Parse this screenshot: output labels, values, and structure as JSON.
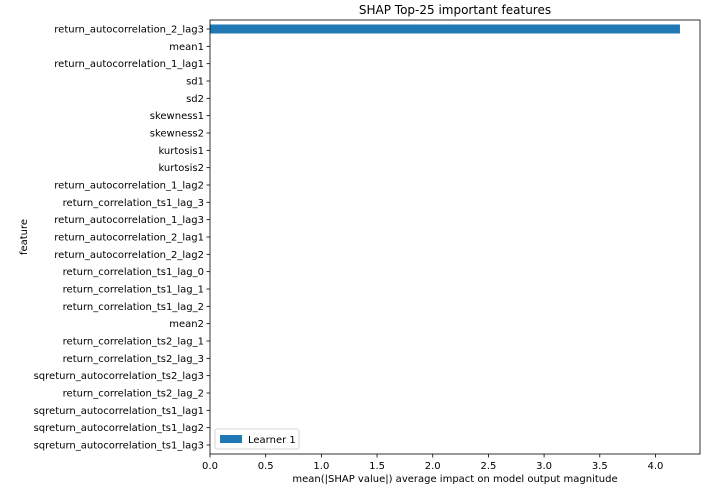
{
  "chart_data": {
    "type": "bar",
    "orientation": "horizontal",
    "title": "SHAP Top-25 important features",
    "xlabel": "mean(|SHAP value|) average impact on model output magnitude",
    "ylabel": "feature",
    "xlim": [
      0,
      4.4
    ],
    "xticks": [
      0.0,
      0.5,
      1.0,
      1.5,
      2.0,
      2.5,
      3.0,
      3.5,
      4.0
    ],
    "xtick_labels": [
      "0.0",
      "0.5",
      "1.0",
      "1.5",
      "2.0",
      "2.5",
      "3.0",
      "3.5",
      "4.0"
    ],
    "grid": false,
    "legend_position": "lower-left",
    "categories": [
      "return_autocorrelation_2_lag3",
      "mean1",
      "return_autocorrelation_1_lag1",
      "sd1",
      "sd2",
      "skewness1",
      "skewness2",
      "kurtosis1",
      "kurtosis2",
      "return_autocorrelation_1_lag2",
      "return_correlation_ts1_lag_3",
      "return_autocorrelation_1_lag3",
      "return_autocorrelation_2_lag1",
      "return_autocorrelation_2_lag2",
      "return_correlation_ts1_lag_0",
      "return_correlation_ts1_lag_1",
      "return_correlation_ts1_lag_2",
      "mean2",
      "return_correlation_ts2_lag_1",
      "return_correlation_ts2_lag_3",
      "sqreturn_autocorrelation_ts2_lag3",
      "return_correlation_ts2_lag_2",
      "sqreturn_autocorrelation_ts1_lag1",
      "sqreturn_autocorrelation_ts1_lag2",
      "sqreturn_autocorrelation_ts1_lag3"
    ],
    "series": [
      {
        "name": "Learner 1",
        "color": "#1f77b4",
        "values": [
          4.22,
          0,
          0,
          0,
          0,
          0,
          0,
          0,
          0,
          0,
          0,
          0,
          0,
          0,
          0,
          0,
          0,
          0,
          0,
          0,
          0,
          0,
          0,
          0,
          0
        ]
      }
    ]
  }
}
